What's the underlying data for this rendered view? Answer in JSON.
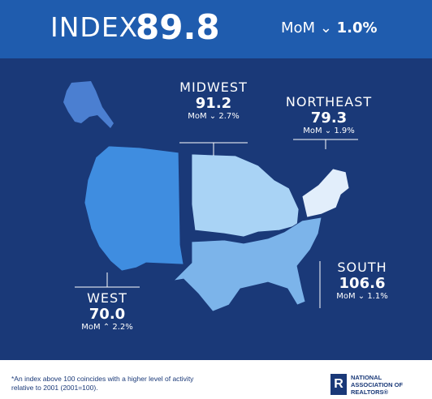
{
  "header": {
    "index_label": "INDEX",
    "index_value": "89.8",
    "mom_label": "MoM",
    "mom_value": "1.0%"
  },
  "regions": {
    "midwest": {
      "name": "MIDWEST",
      "value": "91.2",
      "mom_label": "MoM",
      "mom_value": "2.7%",
      "direction": "down"
    },
    "northeast": {
      "name": "NORTHEAST",
      "value": "79.3",
      "mom_label": "MoM",
      "mom_value": "1.9%",
      "direction": "down"
    },
    "south": {
      "name": "SOUTH",
      "value": "106.6",
      "mom_label": "MoM",
      "mom_value": "1.1%",
      "direction": "down"
    },
    "west": {
      "name": "WEST",
      "value": "70.0",
      "mom_label": "MoM",
      "mom_value": "2.2%",
      "direction": "up"
    }
  },
  "footer": {
    "note": "*An index above 100 coincides with a higher level of activity relative to 2001 (2001=100).",
    "logo_line1": "NATIONAL",
    "logo_line2": "ASSOCIATION OF",
    "logo_line3": "REALTORS®",
    "logo_mark": "R"
  },
  "colors": {
    "header_bg": "#1f5cae",
    "main_bg": "#1a3978",
    "west": "#3f8de0",
    "midwest": "#a9d3f5",
    "northeast": "#e2eefb",
    "south": "#7cb4ea",
    "alaska": "#4b7fd1"
  }
}
